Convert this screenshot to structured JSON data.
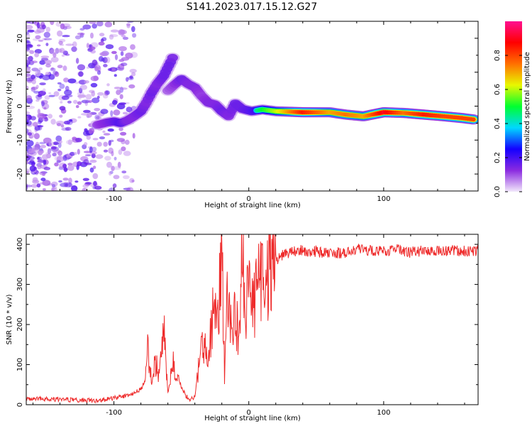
{
  "title": "S141.2023.017.15.12.G27",
  "chart_data": [
    {
      "type": "heatmap",
      "xlabel": "Height of straight line (km)",
      "ylabel": "Frequency (Hz)",
      "xlim": [
        -165,
        170
      ],
      "ylim": [
        -25,
        25
      ],
      "x_ticks": [
        -100,
        0,
        100
      ],
      "x_tick_labels": [
        "-100",
        "0",
        "100"
      ],
      "y_ticks": [
        -20,
        -10,
        0,
        10,
        20
      ],
      "y_tick_labels": [
        "-20",
        "-10",
        "0",
        "10",
        "20"
      ],
      "colorbar": {
        "label": "Normalized spectral amplitude",
        "range": [
          0,
          1
        ],
        "ticks": [
          0.0,
          0.2,
          0.4,
          0.6,
          0.8
        ],
        "tick_labels": [
          "0.0",
          "0.2",
          "0.4",
          "0.6",
          "0.8"
        ],
        "colors": [
          "#f2e8fb",
          "#8b2be0",
          "#1400ff",
          "#00d8ff",
          "#00ff30",
          "#e8f800",
          "#ff7000",
          "#ff0000",
          "#ff1090"
        ]
      },
      "ridge": [
        {
          "x": -112,
          "y": -5.5,
          "a": 0.25
        },
        {
          "x": -105,
          "y": -4.8,
          "a": 0.3
        },
        {
          "x": -100,
          "y": -4.5,
          "a": 0.35
        },
        {
          "x": -95,
          "y": -5.0,
          "a": 0.4
        },
        {
          "x": -90,
          "y": -4.2,
          "a": 0.3
        },
        {
          "x": -85,
          "y": -3.0,
          "a": 0.3
        },
        {
          "x": -80,
          "y": -1.5,
          "a": 0.35
        },
        {
          "x": -76,
          "y": 1.0,
          "a": 0.3
        },
        {
          "x": -72,
          "y": 4.0,
          "a": 0.35
        },
        {
          "x": -68,
          "y": 6.5,
          "a": 0.3
        },
        {
          "x": -63,
          "y": 9.0,
          "a": 0.35
        },
        {
          "x": -58,
          "y": 13.0,
          "a": 0.35
        },
        {
          "x": -55,
          "y": 15.5,
          "a": 0.3
        },
        {
          "x": -60,
          "y": 4.5,
          "a": 0.2
        },
        {
          "x": -56,
          "y": 6.0,
          "a": 0.25
        },
        {
          "x": -50,
          "y": 8.0,
          "a": 0.35
        },
        {
          "x": -45,
          "y": 6.5,
          "a": 0.3
        },
        {
          "x": -40,
          "y": 5.5,
          "a": 0.3
        },
        {
          "x": -35,
          "y": 3.0,
          "a": 0.25
        },
        {
          "x": -30,
          "y": 1.0,
          "a": 0.3
        },
        {
          "x": -25,
          "y": 0.5,
          "a": 0.3
        },
        {
          "x": -20,
          "y": -1.5,
          "a": 0.35
        },
        {
          "x": -15,
          "y": -3.0,
          "a": 0.3
        },
        {
          "x": -10,
          "y": 0.8,
          "a": 0.35
        },
        {
          "x": -5,
          "y": -0.8,
          "a": 0.35
        },
        {
          "x": 2,
          "y": -1.5,
          "a": 0.4
        },
        {
          "x": 10,
          "y": -1.0,
          "a": 0.5
        },
        {
          "x": 20,
          "y": -1.5,
          "a": 0.6
        },
        {
          "x": 40,
          "y": -1.8,
          "a": 0.85
        },
        {
          "x": 60,
          "y": -1.8,
          "a": 0.7
        },
        {
          "x": 72,
          "y": -2.5,
          "a": 0.75
        },
        {
          "x": 85,
          "y": -3.0,
          "a": 0.7
        },
        {
          "x": 100,
          "y": -1.8,
          "a": 0.9
        },
        {
          "x": 115,
          "y": -2.0,
          "a": 0.75
        },
        {
          "x": 130,
          "y": -2.5,
          "a": 0.85
        },
        {
          "x": 145,
          "y": -3.0,
          "a": 0.8
        },
        {
          "x": 158,
          "y": -3.5,
          "a": 0.8
        },
        {
          "x": 168,
          "y": -4.0,
          "a": 0.8
        }
      ]
    },
    {
      "type": "line",
      "xlabel": "Height of straight line (km)",
      "ylabel": "SNR (10 * v/v)",
      "xlim": [
        -165,
        170
      ],
      "ylim": [
        0,
        425
      ],
      "x_ticks": [
        -100,
        0,
        100
      ],
      "x_tick_labels": [
        "-100",
        "0",
        "100"
      ],
      "y_ticks": [
        0,
        100,
        200,
        300,
        400
      ],
      "y_tick_labels": [
        "0",
        "100",
        "200",
        "300",
        "400"
      ],
      "color": "#ee2a2a",
      "series": [
        {
          "x": [
            -165,
            -130,
            -110,
            -95,
            -85,
            -80,
            -77,
            -75,
            -72,
            -70,
            -66,
            -63,
            -60,
            -56,
            -52,
            -48,
            -44,
            -40,
            -37,
            -33,
            -30,
            -26,
            -23,
            -20,
            -18,
            -16,
            -13,
            -10,
            -7,
            -5,
            -2,
            0,
            4,
            8,
            12,
            16,
            20,
            25,
            30,
            40,
            55,
            70,
            80,
            90,
            100,
            110,
            120,
            130,
            140,
            150,
            160,
            170
          ],
          "y": [
            15,
            12,
            10,
            20,
            28,
            38,
            60,
            135,
            50,
            110,
            75,
            185,
            30,
            100,
            60,
            30,
            10,
            20,
            100,
            160,
            120,
            240,
            200,
            425,
            60,
            260,
            180,
            220,
            160,
            390,
            240,
            300,
            250,
            320,
            280,
            350,
            360,
            375,
            380,
            385,
            380,
            378,
            390,
            385,
            383,
            387,
            380,
            385,
            383,
            385,
            383,
            385
          ]
        }
      ]
    }
  ]
}
